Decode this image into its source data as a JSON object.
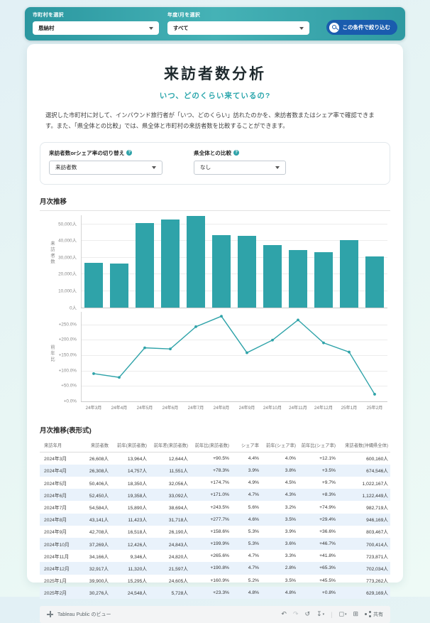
{
  "filter_bar": {
    "municipality": {
      "label": "市町村を選択",
      "value": "恩納村"
    },
    "period": {
      "label": "年度/月を選択",
      "value": "すべて"
    },
    "apply_button": "この条件で絞り込む"
  },
  "header": {
    "title": "来訪者数分析",
    "subtitle": "いつ、どのくらい来ているの?",
    "description": "選択した市町村に対して、インバウンド旅行者が「いつ、どのくらい」訪れたのかを、来訪者数またはシェア率で確認できます。また、「県全体との比較」では、県全体と市町村の来訪者数を比較することができます。"
  },
  "controls": {
    "metric": {
      "label": "来訪者数orシェア率の切り替え",
      "value": "来訪者数"
    },
    "comparison": {
      "label": "県全体との比較",
      "value": "なし"
    }
  },
  "chart_section": {
    "title": "月次推移"
  },
  "chart_data": {
    "type": "bar+line",
    "title": "月次推移",
    "categories": [
      "24年3月",
      "24年4月",
      "24年5月",
      "24年6月",
      "24年7月",
      "24年8月",
      "24年9月",
      "24年10月",
      "24年11月",
      "24年12月",
      "25年1月",
      "25年2月"
    ],
    "series": [
      {
        "name": "来訪者数",
        "type": "bar",
        "values": [
          26608,
          26308,
          50406,
          52450,
          54584,
          43141,
          42708,
          37269,
          34166,
          32917,
          39900,
          30276
        ]
      },
      {
        "name": "前年比(来訪者数)",
        "type": "line",
        "values": [
          90.5,
          78.3,
          174.7,
          171.0,
          243.5,
          277.7,
          158.6,
          199.9,
          265.6,
          190.8,
          160.9,
          23.3
        ]
      }
    ],
    "bar_axis": {
      "title": "来訪者数",
      "tick_values": [
        0,
        10000,
        20000,
        30000,
        40000,
        50000
      ],
      "tick_labels": [
        "0人",
        "10,000人",
        "20,000人",
        "30,000人",
        "40,000人",
        "50,000人"
      ],
      "max": 55000
    },
    "line_axis": {
      "title": "前年比",
      "tick_values": [
        0,
        50,
        100,
        150,
        200,
        250
      ],
      "tick_labels": [
        "+0.0%",
        "+50.0%",
        "+100.0%",
        "+150.0%",
        "+200.0%",
        "+250.0%"
      ],
      "max": 292
    },
    "color": "#2fa3a9",
    "grid": true,
    "legend": "none"
  },
  "table": {
    "title": "月次推移(表形式)",
    "columns": [
      "来訪年月",
      "来訪者数",
      "前年(来訪者数)",
      "前年差(来訪者数)",
      "前年比(来訪者数)",
      "シェア率",
      "前年(シェア率)",
      "前年比(シェア率)",
      "来訪者数(沖縄県全体)"
    ],
    "rows": [
      [
        "2024年3月",
        "26,608人",
        "13,964人",
        "12,644人",
        "+90.5%",
        "4.4%",
        "4.0%",
        "+12.1%",
        "600,160人"
      ],
      [
        "2024年4月",
        "26,308人",
        "14,757人",
        "11,551人",
        "+78.3%",
        "3.9%",
        "3.8%",
        "+3.5%",
        "674,546人"
      ],
      [
        "2024年5月",
        "50,406人",
        "18,350人",
        "32,056人",
        "+174.7%",
        "4.9%",
        "4.5%",
        "+9.7%",
        "1,022,167人"
      ],
      [
        "2024年6月",
        "52,450人",
        "19,358人",
        "33,092人",
        "+171.0%",
        "4.7%",
        "4.3%",
        "+8.3%",
        "1,122,449人"
      ],
      [
        "2024年7月",
        "54,584人",
        "15,890人",
        "38,694人",
        "+243.5%",
        "5.6%",
        "3.2%",
        "+74.9%",
        "982,719人"
      ],
      [
        "2024年8月",
        "43,141人",
        "11,423人",
        "31,718人",
        "+277.7%",
        "4.6%",
        "3.5%",
        "+29.4%",
        "946,169人"
      ],
      [
        "2024年9月",
        "42,708人",
        "16,518人",
        "26,190人",
        "+158.6%",
        "5.3%",
        "3.9%",
        "+36.6%",
        "803,467人"
      ],
      [
        "2024年10月",
        "37,269人",
        "12,426人",
        "24,843人",
        "+199.9%",
        "5.3%",
        "3.6%",
        "+46.7%",
        "700,414人"
      ],
      [
        "2024年11月",
        "34,166人",
        "9,346人",
        "24,820人",
        "+265.6%",
        "4.7%",
        "3.3%",
        "+41.8%",
        "723,871人"
      ],
      [
        "2024年12月",
        "32,917人",
        "11,320人",
        "21,597人",
        "+190.8%",
        "4.7%",
        "2.8%",
        "+65.3%",
        "702,034人"
      ],
      [
        "2025年1月",
        "39,900人",
        "15,295人",
        "24,605人",
        "+160.9%",
        "5.2%",
        "3.5%",
        "+45.5%",
        "773,262人"
      ],
      [
        "2025年2月",
        "30,276人",
        "24,548人",
        "5,728人",
        "+23.3%",
        "4.8%",
        "4.8%",
        "+0.8%",
        "629,169人"
      ]
    ]
  },
  "footer": {
    "view_label": "Tableau Public のビュー",
    "share_label": "共有",
    "icons": [
      {
        "name": "undo-icon",
        "glyph": "↶",
        "dim": false,
        "caret": false
      },
      {
        "name": "redo-icon",
        "glyph": "↷",
        "dim": true,
        "caret": false
      },
      {
        "name": "reset-icon",
        "glyph": "↺",
        "dim": false,
        "caret": false
      },
      {
        "name": "download-icon",
        "glyph": "↧",
        "dim": false,
        "caret": true
      },
      {
        "name": "divider",
        "glyph": "|",
        "dim": false,
        "caret": false
      },
      {
        "name": "comment-icon",
        "glyph": "◻",
        "dim": false,
        "caret": true
      },
      {
        "name": "fullscreen-icon",
        "glyph": "⊞",
        "dim": false,
        "caret": false
      }
    ]
  },
  "colors": {
    "accent_teal": "#2fa3a9",
    "button_blue": "#1a5cae",
    "row_alt_blue": "#e9f2fb",
    "topbar_teal": "#2b97a0"
  }
}
